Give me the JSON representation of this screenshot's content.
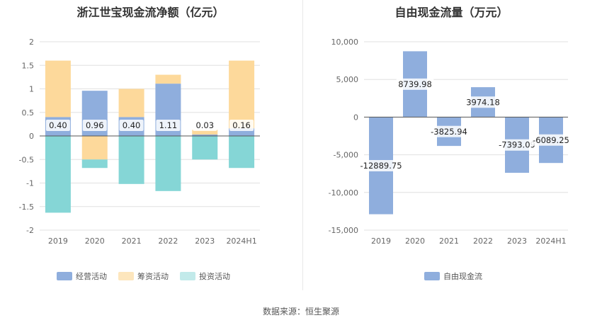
{
  "source_label": "数据来源：恒生聚源",
  "colors": {
    "operating": "#8faedd",
    "financing": "#fdd99b",
    "investing": "#85d6d6",
    "fcf": "#8faedd",
    "grid": "#e0e0e0",
    "axis": "#555555"
  },
  "chart_data": [
    {
      "type": "bar",
      "stacked": true,
      "title": "浙江世宝现金流净额（亿元）",
      "categories": [
        "2019",
        "2020",
        "2021",
        "2022",
        "2023",
        "2024H1"
      ],
      "ylim": [
        -2,
        2
      ],
      "yticks": [
        "2",
        "1.5",
        "1",
        "0.5",
        "0",
        "-0.5",
        "-1",
        "-1.5",
        "-2"
      ],
      "ytick_values": [
        2,
        1.5,
        1,
        0.5,
        0,
        -0.5,
        -1,
        -1.5,
        -2
      ],
      "series": [
        {
          "name": "经营活动",
          "key": "operating",
          "values": [
            0.4,
            0.96,
            0.4,
            1.11,
            0.03,
            0.16
          ],
          "labels": [
            "0.40",
            "0.96",
            "0.40",
            "1.11",
            "0.03",
            "0.16"
          ]
        },
        {
          "name": "筹资活动",
          "key": "financing",
          "values": [
            1.2,
            -0.5,
            0.6,
            0.19,
            0.1,
            1.44
          ]
        },
        {
          "name": "投资活动",
          "key": "investing",
          "values": [
            -1.63,
            -0.18,
            -1.02,
            -1.17,
            -0.5,
            -0.68
          ]
        }
      ],
      "legend_position": "bottom"
    },
    {
      "type": "bar",
      "title": "自由现金流量（万元）",
      "categories": [
        "2019",
        "2020",
        "2021",
        "2022",
        "2023",
        "2024H1"
      ],
      "ylim": [
        -15000,
        10000
      ],
      "yticks": [
        "10,000",
        "5,000",
        "0",
        "-5,000",
        "-10,000",
        "-15,000"
      ],
      "ytick_values": [
        10000,
        5000,
        0,
        -5000,
        -10000,
        -15000
      ],
      "series": [
        {
          "name": "自由现金流",
          "key": "fcf",
          "values": [
            -12889.75,
            8739.98,
            -3825.94,
            3974.18,
            -7393.09,
            -6089.25
          ],
          "labels": [
            "-12889.75",
            "8739.98",
            "-3825.94",
            "3974.18",
            "-7393.09",
            "-6089.25"
          ]
        }
      ],
      "legend_position": "bottom"
    }
  ]
}
